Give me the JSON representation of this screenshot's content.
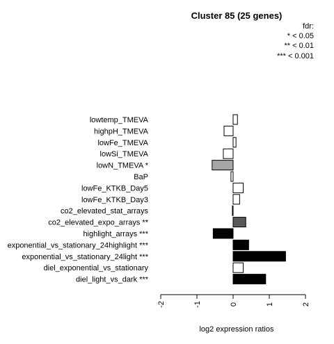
{
  "chart_data": {
    "type": "bar",
    "orientation": "horizontal",
    "title": "Cluster 85 (25 genes)",
    "xlabel": "log2 expression ratios",
    "ylabel": "",
    "xlim": [
      -2,
      2
    ],
    "x_ticks": [
      "-2",
      "-1",
      "0",
      "1",
      "2"
    ],
    "legend": {
      "title": "fdr:",
      "entries": [
        "* < 0.05",
        "** < 0.01",
        "*** < 0.001"
      ],
      "position": "top-right"
    },
    "categories": [
      "lowtemp_TMEVA",
      "highpH_TMEVA",
      "lowFe_TMEVA",
      "lowSi_TMEVA",
      "lowN_TMEVA *",
      "BaP",
      "lowFe_KTKB_Day5",
      "lowFe_KTKB_Day3",
      "co2_elevated_stat_arrays",
      "co2_elevated_expo_arrays **",
      "highlight_arrays ***",
      "exponential_vs_stationary_24highlight ***",
      "exponential_vs_stationary_24light ***",
      "diel_exponential_vs_stationary",
      "diel_light_vs_dark ***"
    ],
    "values": [
      0.12,
      -0.25,
      0.08,
      -0.27,
      -0.58,
      -0.06,
      0.28,
      0.18,
      -0.02,
      0.35,
      -0.55,
      0.43,
      1.45,
      0.28,
      0.9
    ],
    "fill_colors": [
      "#ffffff",
      "#ffffff",
      "#ffffff",
      "#ffffff",
      "#a6a6a6",
      "#ffffff",
      "#ffffff",
      "#ffffff",
      "#ffffff",
      "#595959",
      "#000000",
      "#000000",
      "#000000",
      "#ffffff",
      "#000000"
    ]
  }
}
